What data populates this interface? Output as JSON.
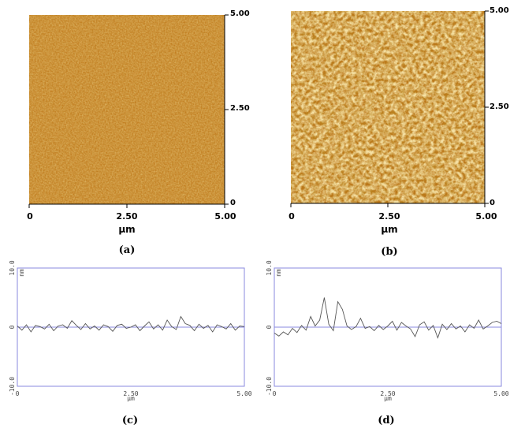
{
  "panels": {
    "a": {
      "label": "(a)",
      "unit": "μm",
      "x_ticks": [
        "0",
        "2.50",
        "5.00"
      ],
      "y_ticks": [
        "5.00",
        "2.50",
        "0"
      ],
      "colors": {
        "base": "#c07a1c",
        "light": "#e8b850",
        "dark": "#9a5c10"
      }
    },
    "b": {
      "label": "(b)",
      "unit": "μm",
      "x_ticks": [
        "0",
        "2.50",
        "5.00"
      ],
      "y_ticks": [
        "5.00",
        "2.50",
        "0"
      ],
      "colors": {
        "base": "#bb7518",
        "light": "#f2d070",
        "dark": "#8a4c08"
      }
    },
    "c": {
      "label": "(c)",
      "y_ticks": [
        "10.0",
        "0",
        "-10.0"
      ],
      "x_ticks": [
        "0",
        "2.50",
        "5.00"
      ],
      "x_unit": "μm",
      "y_unit": "nm"
    },
    "d": {
      "label": "(d)",
      "y_ticks": [
        "10.0",
        "0",
        "-10.0"
      ],
      "x_ticks": [
        "0",
        "2.50",
        "5.00"
      ],
      "x_unit": "μm",
      "y_unit": "nm"
    }
  },
  "chart_data": [
    {
      "type": "line",
      "panel": "c",
      "xlim": [
        0,
        5
      ],
      "ylim": [
        -10,
        10
      ],
      "x": [
        0,
        0.1,
        0.2,
        0.3,
        0.4,
        0.5,
        0.6,
        0.7,
        0.8,
        0.9,
        1.0,
        1.1,
        1.2,
        1.3,
        1.4,
        1.5,
        1.6,
        1.7,
        1.8,
        1.9,
        2.0,
        2.1,
        2.2,
        2.3,
        2.4,
        2.5,
        2.6,
        2.7,
        2.8,
        2.9,
        3.0,
        3.1,
        3.2,
        3.3,
        3.4,
        3.5,
        3.6,
        3.7,
        3.8,
        3.9,
        4.0,
        4.1,
        4.2,
        4.3,
        4.4,
        4.5,
        4.6,
        4.7,
        4.8,
        4.9,
        5.0
      ],
      "values": [
        0.2,
        -0.5,
        0.4,
        -0.8,
        0.3,
        0.1,
        -0.3,
        0.5,
        -0.6,
        0.2,
        0.4,
        -0.2,
        1.1,
        0.3,
        -0.4,
        0.6,
        -0.3,
        0.2,
        -0.5,
        0.4,
        0.1,
        -0.7,
        0.3,
        0.5,
        -0.2,
        0.0,
        0.4,
        -0.6,
        0.2,
        0.9,
        -0.3,
        0.4,
        -0.5,
        1.2,
        0.1,
        -0.4,
        1.8,
        0.6,
        0.3,
        -0.6,
        0.5,
        -0.2,
        0.3,
        -0.8,
        0.4,
        0.1,
        -0.3,
        0.6,
        -0.5,
        0.2,
        0.1
      ]
    },
    {
      "type": "line",
      "panel": "d",
      "xlim": [
        0,
        5
      ],
      "ylim": [
        -10,
        10
      ],
      "x": [
        0,
        0.1,
        0.2,
        0.3,
        0.4,
        0.5,
        0.6,
        0.7,
        0.8,
        0.9,
        1.0,
        1.1,
        1.2,
        1.3,
        1.4,
        1.5,
        1.6,
        1.7,
        1.8,
        1.9,
        2.0,
        2.1,
        2.2,
        2.3,
        2.4,
        2.5,
        2.6,
        2.7,
        2.8,
        2.9,
        3.0,
        3.1,
        3.2,
        3.3,
        3.4,
        3.5,
        3.6,
        3.7,
        3.8,
        3.9,
        4.0,
        4.1,
        4.2,
        4.3,
        4.4,
        4.5,
        4.6,
        4.7,
        4.8,
        4.9,
        5.0
      ],
      "values": [
        -1.0,
        -1.5,
        -0.8,
        -1.3,
        -0.2,
        -0.9,
        0.3,
        -0.5,
        1.8,
        0.2,
        1.2,
        5.0,
        0.5,
        -0.6,
        4.3,
        3.0,
        0.2,
        -0.4,
        0.1,
        1.5,
        -0.2,
        0.1,
        -0.6,
        0.3,
        -0.4,
        0.2,
        1.0,
        -0.5,
        0.8,
        0.2,
        -0.3,
        -1.6,
        0.4,
        0.9,
        -0.5,
        0.3,
        -1.8,
        0.5,
        -0.4,
        0.6,
        -0.3,
        0.2,
        -0.8,
        0.4,
        -0.2,
        1.2,
        -0.3,
        0.2,
        0.8,
        1.0,
        0.6
      ]
    }
  ]
}
